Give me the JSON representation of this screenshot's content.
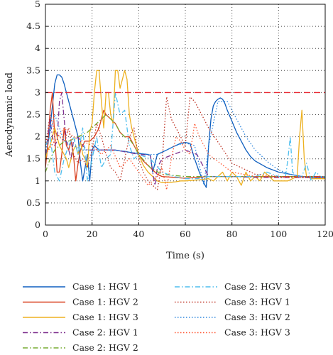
{
  "chart_data": {
    "type": "line",
    "xlabel": "Time (s)",
    "ylabel": "Aerodynamic load",
    "xlim": [
      0,
      120
    ],
    "ylim": [
      0,
      5
    ],
    "x_ticks": [
      "0",
      "20",
      "40",
      "60",
      "80",
      "100",
      "120"
    ],
    "y_ticks": [
      "0",
      "0.5",
      "1",
      "1.5",
      "2",
      "2.5",
      "3",
      "3.5",
      "4",
      "4.5",
      "5"
    ],
    "grid": "dotted",
    "legend_position": "bottom",
    "threshold": {
      "y": 3,
      "color": "#e8212b",
      "style": "dashed"
    },
    "series": [
      {
        "name": "Case 1: HGV 1",
        "color": "#0f5fbf",
        "style": "solid",
        "x": [
          0,
          1,
          2,
          3,
          4,
          5,
          6,
          7,
          8,
          9,
          10,
          11,
          12,
          13,
          14,
          15,
          16,
          17,
          18,
          19,
          20,
          21,
          22,
          23,
          24,
          25,
          26,
          28,
          30,
          32,
          34,
          36,
          38,
          40,
          42,
          44,
          45,
          46,
          47,
          48,
          50,
          52,
          55,
          58,
          60,
          62,
          64,
          66,
          68,
          69,
          70,
          71,
          72,
          73,
          74,
          75,
          76,
          77,
          78,
          80,
          82,
          84,
          86,
          88,
          90,
          95,
          100,
          105,
          110,
          115,
          120
        ],
        "y": [
          1.5,
          1.8,
          2.2,
          2.7,
          3.2,
          3.4,
          3.4,
          3.35,
          3.2,
          3.0,
          2.8,
          2.6,
          2.4,
          2.2,
          2.0,
          1.4,
          1.0,
          1.3,
          1.6,
          1.0,
          1.7,
          1.8,
          1.75,
          1.7,
          1.7,
          1.7,
          1.7,
          1.7,
          1.7,
          1.68,
          1.67,
          1.65,
          1.63,
          1.62,
          1.61,
          1.6,
          1.58,
          1.2,
          1.4,
          1.6,
          1.65,
          1.7,
          1.78,
          1.85,
          1.87,
          1.85,
          1.5,
          1.2,
          0.95,
          0.85,
          1.8,
          2.4,
          2.7,
          2.8,
          2.85,
          2.88,
          2.85,
          2.75,
          2.6,
          2.35,
          2.1,
          1.9,
          1.7,
          1.55,
          1.45,
          1.3,
          1.2,
          1.15,
          1.1,
          1.08,
          1.08
        ]
      },
      {
        "name": "Case 1: HGV 2",
        "color": "#d9401f",
        "style": "solid",
        "x": [
          0,
          1,
          2,
          3,
          4,
          5,
          6,
          7,
          8,
          9,
          10,
          11,
          12,
          13,
          14,
          15,
          16,
          17,
          18,
          19,
          20,
          21,
          22,
          23,
          24,
          25,
          26,
          28,
          30,
          32,
          34,
          36,
          38,
          40,
          42,
          44,
          46,
          48,
          50,
          55,
          60,
          65,
          70,
          75,
          80,
          85,
          90,
          95,
          100,
          105,
          110,
          115,
          120
        ],
        "y": [
          1.3,
          1.8,
          2.6,
          3.0,
          2.0,
          1.2,
          1.2,
          1.6,
          2.2,
          1.8,
          1.7,
          1.9,
          1.6,
          1.0,
          1.4,
          1.7,
          1.8,
          1.9,
          1.9,
          1.9,
          1.95,
          2.0,
          2.1,
          2.2,
          2.4,
          2.6,
          2.5,
          2.4,
          2.3,
          2.1,
          2.0,
          2.0,
          1.8,
          1.6,
          1.45,
          1.35,
          1.25,
          1.15,
          1.1,
          1.08,
          1.06,
          1.08,
          1.1,
          1.1,
          1.1,
          1.1,
          1.1,
          1.1,
          1.1,
          1.1,
          1.1,
          1.1,
          1.1
        ]
      },
      {
        "name": "Case 1: HGV 3",
        "color": "#edb120",
        "style": "solid",
        "x": [
          0,
          1,
          2,
          3,
          4,
          5,
          6,
          7,
          8,
          9,
          10,
          11,
          12,
          13,
          14,
          15,
          16,
          17,
          18,
          19,
          20,
          21,
          22,
          23,
          24,
          25,
          26,
          27,
          28,
          29,
          30,
          31,
          32,
          33,
          34,
          35,
          36,
          37,
          38,
          40,
          42,
          44,
          46,
          48,
          50,
          52,
          54,
          56,
          58,
          60,
          65,
          70,
          72,
          74,
          76,
          78,
          80,
          82,
          84,
          86,
          88,
          90,
          92,
          94,
          96,
          98,
          100,
          102,
          104,
          106,
          108,
          109,
          110,
          111,
          112,
          114,
          116,
          118,
          120
        ],
        "y": [
          1.5,
          1.7,
          1.8,
          2.0,
          2.2,
          2.0,
          1.8,
          1.7,
          1.6,
          1.5,
          1.3,
          1.5,
          1.7,
          1.8,
          1.6,
          1.9,
          1.6,
          1.5,
          1.3,
          2.1,
          2.3,
          3.0,
          3.5,
          3.5,
          2.8,
          2.2,
          3.0,
          3.0,
          2.5,
          2.3,
          3.5,
          3.5,
          3.1,
          3.3,
          3.5,
          3.3,
          2.5,
          2.2,
          2.0,
          1.6,
          1.35,
          1.2,
          1.1,
          1.0,
          0.96,
          0.97,
          0.97,
          0.98,
          1.0,
          1.0,
          1.02,
          1.05,
          1.0,
          1.1,
          1.2,
          1.0,
          1.2,
          1.1,
          0.9,
          1.2,
          1.0,
          1.1,
          1.0,
          1.2,
          1.1,
          1.0,
          1.0,
          1.0,
          1.0,
          1.05,
          1.1,
          2.0,
          2.6,
          1.5,
          1.1,
          1.05,
          1.05,
          1.05,
          1.05
        ]
      },
      {
        "name": "Case 2: HGV 1",
        "color": "#7e2f8e",
        "style": "dashdot",
        "x": [
          0,
          2,
          3,
          4,
          5,
          6,
          7,
          8,
          9,
          10,
          11,
          12,
          14,
          16,
          18,
          20,
          25,
          30,
          35,
          40,
          45,
          46,
          47,
          48,
          50,
          55,
          60,
          65,
          70,
          75,
          80,
          90,
          100,
          110,
          120
        ],
        "y": [
          1.6,
          2.4,
          2.0,
          1.8,
          1.9,
          2.8,
          3.0,
          2.4,
          1.9,
          1.7,
          1.5,
          1.9,
          2.0,
          1.8,
          1.7,
          1.7,
          1.7,
          1.7,
          1.65,
          1.6,
          1.58,
          1.2,
          0.9,
          1.3,
          1.5,
          1.6,
          1.7,
          1.6,
          1.1,
          1.1,
          1.1,
          1.08,
          1.07,
          1.07,
          1.07
        ]
      },
      {
        "name": "Case 2: HGV 2",
        "color": "#77ac30",
        "style": "dashdot",
        "x": [
          0,
          2,
          4,
          6,
          8,
          10,
          12,
          14,
          16,
          18,
          20,
          22,
          24,
          26,
          28,
          30,
          32,
          34,
          36,
          38,
          40,
          45,
          50,
          60,
          70,
          80,
          90,
          100,
          110,
          120
        ],
        "y": [
          1.2,
          1.5,
          1.7,
          1.8,
          1.9,
          1.9,
          1.95,
          2.0,
          2.05,
          2.1,
          2.2,
          2.3,
          2.4,
          2.5,
          2.4,
          2.3,
          2.1,
          2.0,
          1.95,
          1.8,
          1.6,
          1.3,
          1.15,
          1.1,
          1.1,
          1.1,
          1.1,
          1.1,
          1.1,
          1.1
        ]
      },
      {
        "name": "Case 2: HGV 3",
        "color": "#4dbeee",
        "style": "dashdot",
        "x": [
          0,
          2,
          4,
          6,
          8,
          10,
          12,
          14,
          16,
          18,
          20,
          22,
          24,
          26,
          28,
          30,
          32,
          34,
          36,
          38,
          40,
          45,
          50,
          55,
          60,
          65,
          70,
          75,
          80,
          85,
          90,
          95,
          100,
          103,
          104,
          105,
          106,
          108,
          110,
          112,
          114,
          116,
          118,
          120
        ],
        "y": [
          1.8,
          2.0,
          1.2,
          1.0,
          1.5,
          1.8,
          2.0,
          1.6,
          2.2,
          1.0,
          1.5,
          2.0,
          1.3,
          1.5,
          1.6,
          3.0,
          2.5,
          2.6,
          1.8,
          1.5,
          1.6,
          1.5,
          1.2,
          1.1,
          1.05,
          1.05,
          1.1,
          1.1,
          1.1,
          1.1,
          1.1,
          1.2,
          1.1,
          1.1,
          1.5,
          2.0,
          1.2,
          1.1,
          1.1,
          1.4,
          1.0,
          1.2,
          1.1,
          1.1
        ]
      },
      {
        "name": "Case 3: HGV 1",
        "color": "#c0392b",
        "style": "dotted",
        "x": [
          0,
          2,
          4,
          6,
          8,
          10,
          12,
          14,
          16,
          18,
          20,
          22,
          24,
          26,
          28,
          30,
          32,
          34,
          36,
          38,
          40,
          42,
          44,
          46,
          48,
          50,
          52,
          54,
          56,
          58,
          60,
          62,
          64,
          66,
          68,
          70,
          75,
          80,
          90,
          100,
          110,
          120
        ],
        "y": [
          1.8,
          2.5,
          2.1,
          2.0,
          1.9,
          2.2,
          1.6,
          1.4,
          1.5,
          1.3,
          1.7,
          2.3,
          2.0,
          1.6,
          1.3,
          1.2,
          1.0,
          1.5,
          2.0,
          2.2,
          1.5,
          1.2,
          1.0,
          0.9,
          0.8,
          1.4,
          2.9,
          2.4,
          2.2,
          2.0,
          1.8,
          2.9,
          2.8,
          2.6,
          2.4,
          2.2,
          1.8,
          1.4,
          1.15,
          1.1,
          1.1,
          1.1
        ]
      },
      {
        "name": "Case 3: HGV 2",
        "color": "#2e86de",
        "style": "dotted",
        "x": [
          0,
          4,
          8,
          12,
          16,
          20,
          24,
          28,
          32,
          36,
          40,
          44,
          48,
          52,
          56,
          60,
          64,
          68,
          70,
          74,
          78,
          82,
          86,
          90,
          96,
          100,
          105,
          110,
          115,
          120
        ],
        "y": [
          1.7,
          2.5,
          1.9,
          1.8,
          1.7,
          1.7,
          1.7,
          1.7,
          1.68,
          1.65,
          1.63,
          1.6,
          1.6,
          1.7,
          1.8,
          1.86,
          1.8,
          0.9,
          1.8,
          2.8,
          2.8,
          2.4,
          2.0,
          1.7,
          1.4,
          1.25,
          1.15,
          1.1,
          1.08,
          1.07
        ]
      },
      {
        "name": "Case 3: HGV 3",
        "color": "#ff5733",
        "style": "dotted",
        "x": [
          0,
          4,
          8,
          12,
          16,
          20,
          24,
          28,
          32,
          36,
          40,
          44,
          48,
          50,
          52,
          54,
          56,
          58,
          60,
          62,
          64,
          66,
          68,
          70,
          80,
          90,
          100,
          110,
          120
        ],
        "y": [
          1.6,
          1.9,
          2.2,
          2.0,
          1.9,
          1.8,
          1.6,
          1.8,
          1.3,
          1.5,
          1.2,
          0.9,
          1.1,
          1.3,
          0.8,
          1.5,
          2.0,
          1.9,
          1.7,
          1.6,
          2.3,
          2.0,
          1.8,
          1.6,
          1.2,
          1.1,
          1.08,
          1.07,
          1.07
        ]
      }
    ]
  }
}
